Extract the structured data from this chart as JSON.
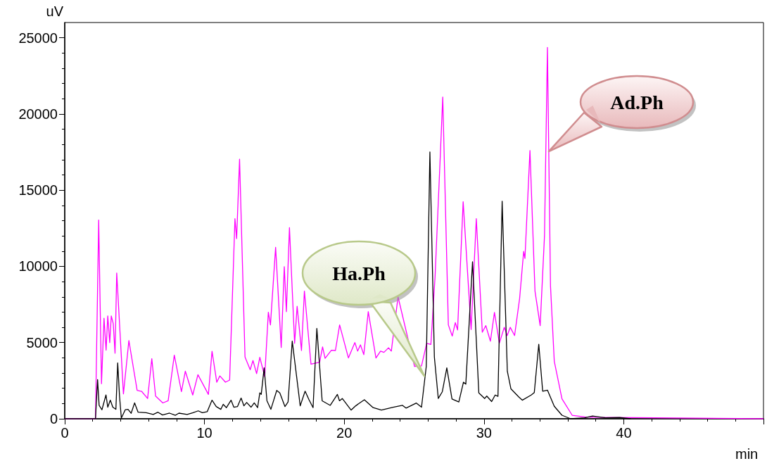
{
  "chart_data": {
    "type": "line",
    "xlabel": "min",
    "ylabel": "uV",
    "xlim": [
      0,
      50
    ],
    "ylim": [
      0,
      26000
    ],
    "xticks": [
      0,
      10,
      20,
      30,
      40,
      {
        "value": 50,
        "label": null
      }
    ],
    "yticks": [
      0,
      5000,
      10000,
      15000,
      20000,
      25000
    ],
    "grid": false,
    "legend": false,
    "marker": "none",
    "line_style": "solid",
    "series": [
      {
        "name": "Ad.Ph",
        "color": "#ff00ff",
        "x": [
          0,
          1,
          2.2,
          2.43,
          2.63,
          2.81,
          2.96,
          3.08,
          3.22,
          3.33,
          3.47,
          3.6,
          3.72,
          4.2,
          4.59,
          5.18,
          5.5,
          5.93,
          6.23,
          6.5,
          7.02,
          7.4,
          7.84,
          8.35,
          8.63,
          9.16,
          9.53,
          10.28,
          10.54,
          10.88,
          11.1,
          11.5,
          11.8,
          12.18,
          12.3,
          12.51,
          12.9,
          13.27,
          13.47,
          13.73,
          13.96,
          14.31,
          14.57,
          14.72,
          15.09,
          15.49,
          15.71,
          15.86,
          16.08,
          16.45,
          16.63,
          16.94,
          17.15,
          17.62,
          18.24,
          18.45,
          18.63,
          19.08,
          19.37,
          19.67,
          20.3,
          20.76,
          20.96,
          21.16,
          21.4,
          21.72,
          22.27,
          22.6,
          22.84,
          23.17,
          23.37,
          23.85,
          25.03,
          25.53,
          25.9,
          26.2,
          26.5,
          26.87,
          27.05,
          27.45,
          27.73,
          27.95,
          28.11,
          28.51,
          29.08,
          29.45,
          29.88,
          30.13,
          30.46,
          30.75,
          31.1,
          31.45,
          31.66,
          31.88,
          32.19,
          32.55,
          32.84,
          32.93,
          33.29,
          33.65,
          34.02,
          34.33,
          34.54,
          34.76,
          35.03,
          35.58,
          36.31,
          37.2,
          37.8,
          50
        ],
        "values": [
          0,
          0,
          0,
          13040,
          2300,
          6600,
          4500,
          6750,
          5000,
          6750,
          6250,
          4300,
          9560,
          1630,
          5130,
          1860,
          1800,
          1330,
          3940,
          1490,
          1040,
          1180,
          4170,
          1780,
          3120,
          1560,
          2890,
          1600,
          4430,
          2400,
          2810,
          2400,
          2540,
          13130,
          11820,
          17030,
          4050,
          3220,
          3820,
          2960,
          4030,
          2760,
          6990,
          6160,
          11250,
          4680,
          9980,
          7030,
          12540,
          4950,
          7380,
          4480,
          8380,
          3580,
          3710,
          4720,
          3970,
          4500,
          4480,
          6160,
          3990,
          5000,
          4440,
          4850,
          4210,
          7030,
          3990,
          4440,
          4360,
          4660,
          4440,
          8000,
          3440,
          3470,
          4950,
          4880,
          9330,
          17180,
          21110,
          6160,
          5430,
          6310,
          5830,
          14240,
          5860,
          13130,
          5680,
          6110,
          5090,
          6980,
          4960,
          6000,
          5460,
          6000,
          5460,
          7890,
          10980,
          10520,
          17600,
          8380,
          6110,
          12000,
          24360,
          8710,
          3770,
          1310,
          230,
          120,
          100,
          0
        ]
      },
      {
        "name": "Ha.Ph",
        "color": "#000000",
        "x": [
          0,
          2.2,
          2.35,
          2.46,
          2.66,
          2.95,
          3.08,
          3.26,
          3.44,
          3.66,
          3.79,
          3.92,
          4.05,
          4.33,
          4.53,
          4.75,
          5,
          5.25,
          5.83,
          6.33,
          6.67,
          7,
          7.5,
          7.92,
          8.17,
          8.76,
          9.18,
          9.55,
          9.85,
          10.2,
          10.54,
          10.84,
          11.17,
          11.34,
          11.57,
          11.9,
          12.1,
          12.36,
          12.62,
          12.82,
          13.02,
          13.33,
          13.56,
          13.8,
          13.96,
          14.06,
          14.27,
          14.47,
          14.75,
          15.17,
          15.39,
          15.76,
          15.98,
          16.28,
          16.85,
          17.2,
          17.48,
          17.77,
          18.04,
          18.42,
          19,
          19.51,
          19.66,
          19.86,
          20.49,
          20.82,
          21.44,
          22.07,
          22.66,
          23.5,
          24.17,
          24.42,
          25.16,
          25.53,
          25.87,
          26.13,
          26.45,
          26.73,
          27.02,
          27.34,
          27.71,
          28.2,
          28.53,
          28.7,
          29.18,
          29.63,
          30.05,
          30.2,
          30.55,
          30.8,
          31,
          31.3,
          31.67,
          31.93,
          32.49,
          32.74,
          33.38,
          33.6,
          33.92,
          34.2,
          34.54,
          35.03,
          35.58,
          36.2,
          37.2,
          37.77,
          38.7,
          39.7,
          40.5
        ],
        "values": [
          0,
          0,
          2570,
          880,
          590,
          1560,
          760,
          1220,
          760,
          620,
          3670,
          1490,
          50,
          590,
          620,
          360,
          1040,
          430,
          400,
          280,
          430,
          250,
          370,
          230,
          370,
          280,
          400,
          520,
          400,
          470,
          1220,
          800,
          620,
          950,
          730,
          1220,
          760,
          800,
          1360,
          850,
          1070,
          760,
          1040,
          730,
          1700,
          1600,
          3340,
          1180,
          620,
          1860,
          1700,
          800,
          1100,
          5100,
          850,
          1810,
          1250,
          730,
          5930,
          1180,
          880,
          1600,
          1180,
          1330,
          570,
          850,
          1250,
          730,
          570,
          760,
          880,
          700,
          1030,
          760,
          3440,
          17510,
          4050,
          1330,
          1780,
          3340,
          1300,
          1100,
          2400,
          2270,
          10300,
          1700,
          1330,
          1490,
          1130,
          1560,
          1470,
          14270,
          3120,
          1960,
          1430,
          1220,
          1560,
          1720,
          4890,
          1810,
          1880,
          820,
          230,
          0,
          60,
          180,
          60,
          80,
          0
        ]
      }
    ]
  }
}
